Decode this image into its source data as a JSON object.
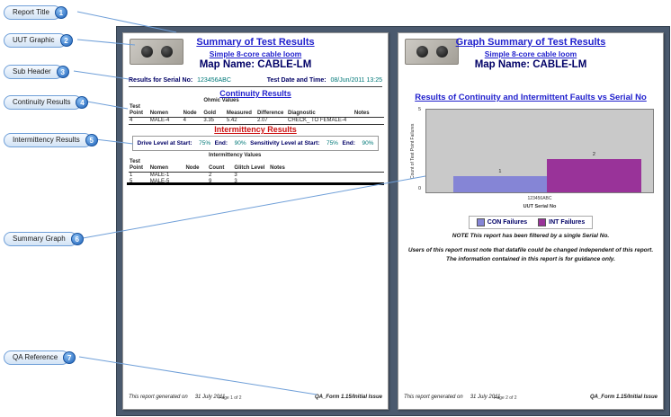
{
  "callouts": [
    {
      "num": "1",
      "label": "Report Title"
    },
    {
      "num": "2",
      "label": "UUT Graphic"
    },
    {
      "num": "3",
      "label": "Sub Header"
    },
    {
      "num": "4",
      "label": "Continuity Results"
    },
    {
      "num": "5",
      "label": "Intermittency Results"
    },
    {
      "num": "6",
      "label": "Summary Graph"
    },
    {
      "num": "7",
      "label": "QA Reference"
    }
  ],
  "page1": {
    "title": "Summary of Test Results",
    "subtitle": "Simple 8-core cable loom",
    "map_name": "Map Name: CABLE-LM",
    "serial_label": "Results for Serial No:",
    "serial_value": "123456ABC",
    "datetime_label": "Test Date and Time:",
    "datetime_value": "08/Jun/2011 13:25",
    "continuity": {
      "heading": "Continuity Results",
      "group_header": "Ohmic Values",
      "headers": [
        "Test\nPoint",
        "Nomen",
        "Node",
        "Gold",
        "Measured",
        "Difference",
        "Diagnostic",
        "Notes"
      ],
      "rows": [
        [
          "4",
          "MALE-4",
          "4",
          "3.35",
          "5.42",
          "2.07",
          "CHECK_ TO FEMALE-4",
          ""
        ]
      ]
    },
    "intermittency": {
      "heading": "Intermittency Results",
      "drive_label": "Drive Level at Start:",
      "drive_start": "75%",
      "end_label": "End:",
      "drive_end": "90%",
      "sens_label": "Sensitivity Level at Start:",
      "sens_start": "75%",
      "sens_end": "90%",
      "group_header": "Intermittency Values",
      "headers": [
        "Test\nPoint",
        "Nomen",
        "Node",
        "Count",
        "Glitch Level",
        "Notes"
      ],
      "rows": [
        [
          "1",
          "MALE-1",
          "",
          "2",
          "3",
          ""
        ],
        [
          "5",
          "MALE-5",
          "",
          "9",
          "3",
          ""
        ]
      ]
    },
    "footer": {
      "generated": "This report generated on",
      "date": "31 July 2011",
      "page": "Page 1 of 2",
      "qa": "QA_Form 1.15/Initial Issue"
    }
  },
  "page2": {
    "title": "Graph Summary of Test Results",
    "subtitle": "Simple 8-core cable loom",
    "map_name": "Map Name: CABLE-LM",
    "chart_heading": "Results of Continuity and Intermittent Faults vs Serial No",
    "note": "NOTE This report has been filtered by a single Serial No.",
    "disclaimer1": "Users of this report must note that datafile could be changed independent of this report.",
    "disclaimer2": "The information contained in this report is for guidance only.",
    "footer": {
      "generated": "This report generated on",
      "date": "31 July 2011",
      "page": "Page 2 of 2",
      "qa": "QA_Form 1.15/Initial Issue"
    }
  },
  "chart_data": {
    "type": "bar",
    "title": "Results of Continuity and Intermittent Faults vs Serial No",
    "categories": [
      "123456ABC"
    ],
    "series": [
      {
        "name": "CON Failures",
        "values": [
          1
        ],
        "color": "#8585d6"
      },
      {
        "name": "INT Failures",
        "values": [
          2
        ],
        "color": "#993399"
      }
    ],
    "xlabel": "UUT Serial No",
    "ylabel": "Count of Test Point Failures",
    "ylim": [
      0,
      5
    ],
    "grid": false,
    "legend_position": "bottom",
    "plot_background": "#c9c9c9"
  }
}
